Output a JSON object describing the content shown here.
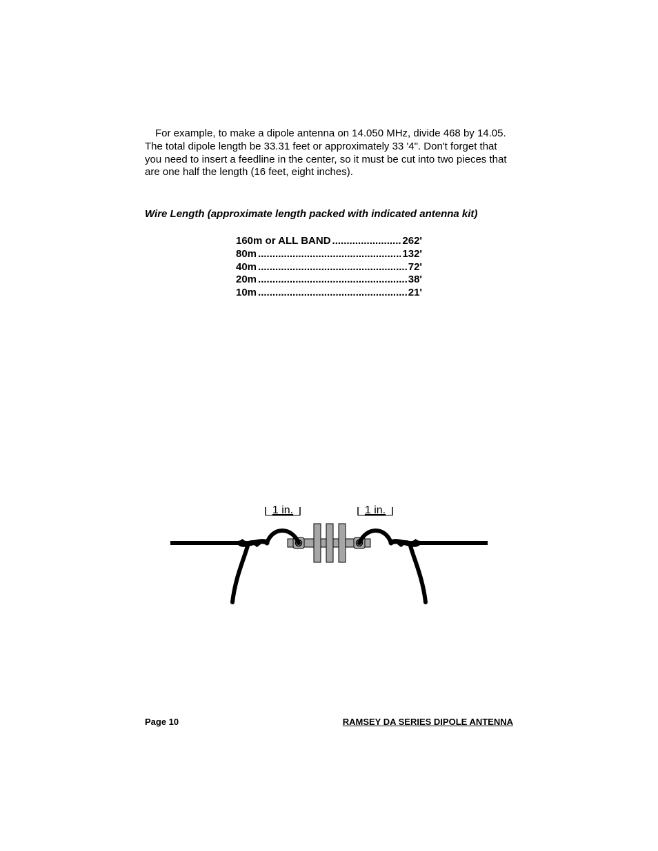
{
  "body_paragraph": "For example, to make a dipole antenna on 14.050 MHz, divide 468 by 14.05.  The total dipole length be 33.31 feet or approximately 33 '4\".  Don't forget that you need to insert a feedline in the center, so it must be cut into two pieces that are one half the length (16 feet, eight inches).",
  "section_heading": "Wire Length (approximate length packed with indicated antenna kit)",
  "wire_lengths": [
    {
      "band": "160m or ALL BAND",
      "length": "262'"
    },
    {
      "band": "80m",
      "length": "132'"
    },
    {
      "band": "40m",
      "length": "72'"
    },
    {
      "band": "20m",
      "length": "38'"
    },
    {
      "band": "10m",
      "length": "21'"
    }
  ],
  "diagram": {
    "left_label": "1 in.",
    "right_label": "1 in.",
    "label_fontsize": 16,
    "wire_color": "#000000",
    "insulator_fill": "#a6a6a6",
    "insulator_stroke": "#000000",
    "eyebolt_fill": "#a6a6a6",
    "eyebolt_stroke": "#000000",
    "wire_width": 6
  },
  "footer": {
    "left": "Page 10",
    "right": "RAMSEY  DA SERIES DIPOLE ANTENNA"
  },
  "colors": {
    "background": "#ffffff",
    "text": "#000000"
  }
}
